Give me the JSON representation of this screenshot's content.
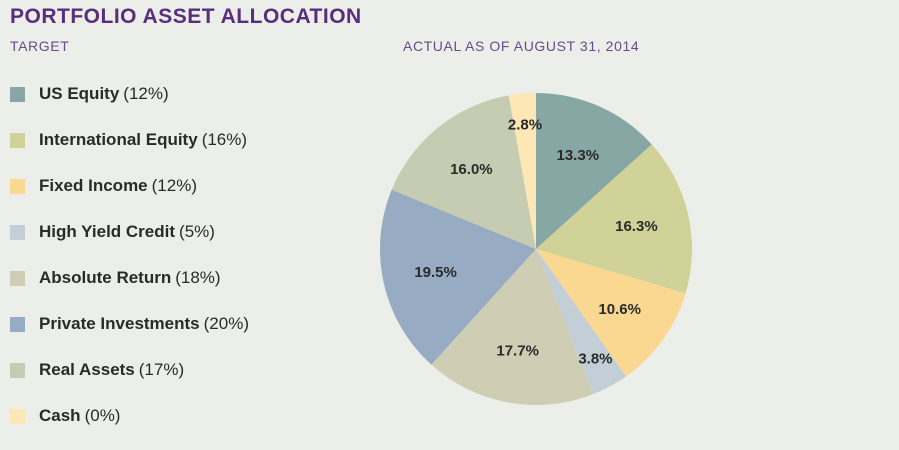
{
  "header": {
    "title": "PORTFOLIO ASSET ALLOCATION",
    "target_label": "TARGET",
    "actual_label": "ACTUAL AS OF AUGUST 31, 2014"
  },
  "chart_data": {
    "type": "pie",
    "title": "PORTFOLIO ASSET ALLOCATION",
    "subtitle": "ACTUAL AS OF AUGUST 31, 2014",
    "legend_title": "TARGET",
    "legend_position": "left",
    "slices": [
      {
        "name": "US Equity",
        "target": "(12%)",
        "value": 13.3,
        "label": "13.3%",
        "color": "#86a7a3"
      },
      {
        "name": "International Equity",
        "target": "(16%)",
        "value": 16.3,
        "label": "16.3%",
        "color": "#d1d297"
      },
      {
        "name": "Fixed Income",
        "target": "(12%)",
        "value": 10.6,
        "label": "10.6%",
        "color": "#fbd892"
      },
      {
        "name": "High Yield Credit",
        "target": "(5%)",
        "value": 3.8,
        "label": "3.8%",
        "color": "#c3ced6"
      },
      {
        "name": "Absolute Return",
        "target": "(18%)",
        "value": 17.7,
        "label": "17.7%",
        "color": "#cfceb5"
      },
      {
        "name": "Private Investments",
        "target": "(20%)",
        "value": 19.5,
        "label": "19.5%",
        "color": "#97acc2"
      },
      {
        "name": "Real Assets",
        "target": "(17%)",
        "value": 16.0,
        "label": "16.0%",
        "color": "#c6ccb1"
      },
      {
        "name": "Cash",
        "target": "(0%)",
        "value": 2.8,
        "label": "2.8%",
        "color": "#fde8b5"
      }
    ]
  }
}
